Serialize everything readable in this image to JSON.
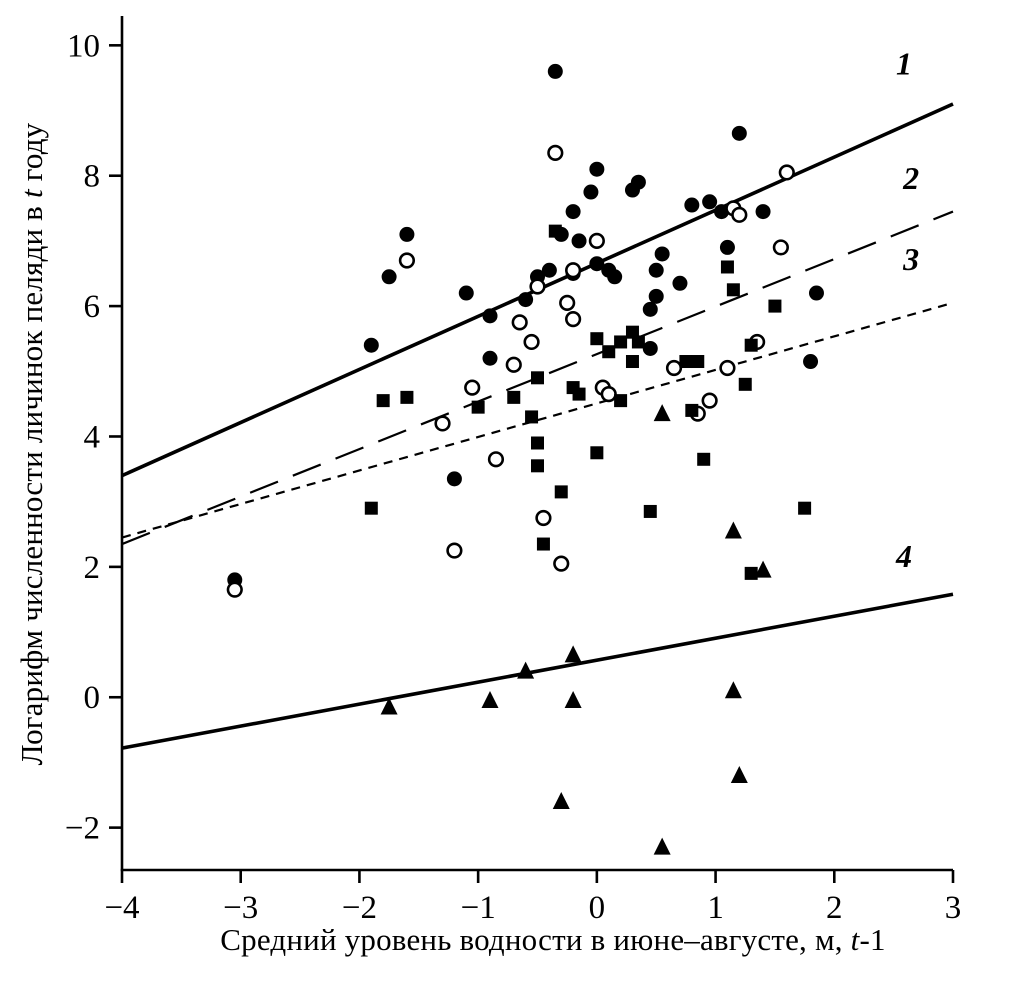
{
  "figure": {
    "background": "#ffffff",
    "ink": "#000000"
  },
  "labels": {
    "y_pre": "Логарифм численности личинок пеляди в ",
    "y_it": "t",
    "y_post": " году",
    "x_pre": "Средний уровень водности в июне–августе, м, ",
    "x_it": "t",
    "x_post": "-1"
  },
  "chart_data": {
    "type": "scatter",
    "title": "",
    "xlabel": "Средний уровень водности в июне–августе, м, t-1",
    "ylabel": "Логарифм численности личинок пеляди в t году",
    "xlim": [
      -4,
      3
    ],
    "ylim": [
      -2.65,
      10.45
    ],
    "grid": false,
    "legend": "none",
    "color": "#000000",
    "xticks": [
      {
        "v": -4,
        "label": "−4"
      },
      {
        "v": -3,
        "label": "−3"
      },
      {
        "v": -2,
        "label": "−2"
      },
      {
        "v": -1,
        "label": "−1"
      },
      {
        "v": 0,
        "label": "0"
      },
      {
        "v": 1,
        "label": "1"
      },
      {
        "v": 2,
        "label": "2"
      },
      {
        "v": 3,
        "label": "3"
      }
    ],
    "yticks": [
      {
        "v": -2,
        "label": "−2"
      },
      {
        "v": 0,
        "label": "0"
      },
      {
        "v": 2,
        "label": "2"
      },
      {
        "v": 4,
        "label": "4"
      },
      {
        "v": 6,
        "label": "6"
      },
      {
        "v": 8,
        "label": "8"
      },
      {
        "v": 10,
        "label": "10"
      }
    ],
    "lines": [
      {
        "label": "1",
        "style": "solid",
        "width": 3.6,
        "dash": "",
        "x1": -4,
        "y1": 3.4,
        "x2": 3,
        "y2": 9.1,
        "label_x": 2.52,
        "label_y": 9.55
      },
      {
        "label": "2",
        "style": "long-dash",
        "width": 2.2,
        "dash": "30 16",
        "x1": -4,
        "y1": 2.35,
        "x2": 3,
        "y2": 7.45,
        "label_x": 2.58,
        "label_y": 7.8
      },
      {
        "label": "3",
        "style": "short-dash",
        "width": 2.2,
        "dash": "9 7",
        "x1": -4,
        "y1": 2.45,
        "x2": 3,
        "y2": 6.05,
        "label_x": 2.58,
        "label_y": 6.55
      },
      {
        "label": "4",
        "style": "solid",
        "width": 3.6,
        "dash": "",
        "x1": -4,
        "y1": -0.78,
        "x2": 3,
        "y2": 1.58,
        "label_x": 2.52,
        "label_y": 2.0
      }
    ],
    "series": [
      {
        "name": "group 1 (filled circles)",
        "marker": "circle-filled",
        "points": [
          [
            -0.35,
            9.6
          ],
          [
            1.2,
            8.65
          ],
          [
            0.0,
            8.1
          ],
          [
            0.35,
            7.9
          ],
          [
            0.3,
            7.78
          ],
          [
            -0.05,
            7.75
          ],
          [
            0.95,
            7.6
          ],
          [
            0.8,
            7.55
          ],
          [
            1.05,
            7.45
          ],
          [
            1.4,
            7.45
          ],
          [
            -0.2,
            7.45
          ],
          [
            -0.3,
            7.1
          ],
          [
            -0.15,
            7.0
          ],
          [
            -1.6,
            7.1
          ],
          [
            -1.75,
            6.45
          ],
          [
            1.1,
            6.9
          ],
          [
            0.55,
            6.8
          ],
          [
            0.0,
            6.65
          ],
          [
            -0.4,
            6.55
          ],
          [
            -0.2,
            6.5
          ],
          [
            0.1,
            6.55
          ],
          [
            0.5,
            6.55
          ],
          [
            0.15,
            6.45
          ],
          [
            -0.5,
            6.45
          ],
          [
            0.7,
            6.35
          ],
          [
            -1.1,
            6.2
          ],
          [
            1.85,
            6.2
          ],
          [
            0.5,
            6.15
          ],
          [
            -0.6,
            6.1
          ],
          [
            0.45,
            5.95
          ],
          [
            -0.9,
            5.85
          ],
          [
            -1.9,
            5.4
          ],
          [
            0.45,
            5.35
          ],
          [
            -0.9,
            5.2
          ],
          [
            1.8,
            5.15
          ],
          [
            -1.2,
            3.35
          ],
          [
            -3.05,
            1.8
          ]
        ]
      },
      {
        "name": "group 2 (open circles)",
        "marker": "circle-open",
        "points": [
          [
            -0.35,
            8.35
          ],
          [
            1.6,
            8.05
          ],
          [
            1.15,
            7.5
          ],
          [
            1.2,
            7.4
          ],
          [
            0.0,
            7.0
          ],
          [
            1.55,
            6.9
          ],
          [
            -1.6,
            6.7
          ],
          [
            -0.2,
            6.55
          ],
          [
            -0.5,
            6.3
          ],
          [
            -0.25,
            6.05
          ],
          [
            -0.2,
            5.8
          ],
          [
            -0.65,
            5.75
          ],
          [
            -0.55,
            5.45
          ],
          [
            1.35,
            5.45
          ],
          [
            -0.7,
            5.1
          ],
          [
            0.65,
            5.05
          ],
          [
            1.1,
            5.05
          ],
          [
            0.05,
            4.75
          ],
          [
            -1.05,
            4.75
          ],
          [
            0.1,
            4.65
          ],
          [
            0.95,
            4.55
          ],
          [
            0.85,
            4.35
          ],
          [
            -1.3,
            4.2
          ],
          [
            -0.85,
            3.65
          ],
          [
            -0.45,
            2.75
          ],
          [
            -1.2,
            2.25
          ],
          [
            -0.3,
            2.05
          ],
          [
            -3.05,
            1.65
          ]
        ]
      },
      {
        "name": "group 3 (filled squares)",
        "marker": "square-filled",
        "points": [
          [
            -0.35,
            7.15
          ],
          [
            1.1,
            6.6
          ],
          [
            1.15,
            6.25
          ],
          [
            1.5,
            6.0
          ],
          [
            0.3,
            5.6
          ],
          [
            0.0,
            5.5
          ],
          [
            0.2,
            5.45
          ],
          [
            0.35,
            5.45
          ],
          [
            1.3,
            5.4
          ],
          [
            0.1,
            5.3
          ],
          [
            0.3,
            5.15
          ],
          [
            0.75,
            5.15
          ],
          [
            0.85,
            5.15
          ],
          [
            -0.5,
            4.9
          ],
          [
            1.25,
            4.8
          ],
          [
            -0.2,
            4.75
          ],
          [
            -0.15,
            4.65
          ],
          [
            -0.7,
            4.6
          ],
          [
            -1.6,
            4.6
          ],
          [
            -1.8,
            4.55
          ],
          [
            0.2,
            4.55
          ],
          [
            -1.0,
            4.45
          ],
          [
            0.8,
            4.4
          ],
          [
            -0.55,
            4.3
          ],
          [
            -0.5,
            3.9
          ],
          [
            0.0,
            3.75
          ],
          [
            0.9,
            3.65
          ],
          [
            -0.5,
            3.55
          ],
          [
            -0.3,
            3.15
          ],
          [
            -1.9,
            2.9
          ],
          [
            1.75,
            2.9
          ],
          [
            0.45,
            2.85
          ],
          [
            -0.45,
            2.35
          ],
          [
            1.3,
            1.9
          ]
        ]
      },
      {
        "name": "group 4 (filled triangles)",
        "marker": "triangle-filled",
        "points": [
          [
            0.55,
            4.35
          ],
          [
            1.15,
            2.55
          ],
          [
            1.4,
            1.95
          ],
          [
            -0.2,
            0.65
          ],
          [
            -0.6,
            0.4
          ],
          [
            1.15,
            0.1
          ],
          [
            -0.9,
            -0.05
          ],
          [
            -0.2,
            -0.05
          ],
          [
            -1.75,
            -0.15
          ],
          [
            1.2,
            -1.2
          ],
          [
            -0.3,
            -1.6
          ],
          [
            0.55,
            -2.3
          ]
        ]
      }
    ]
  }
}
